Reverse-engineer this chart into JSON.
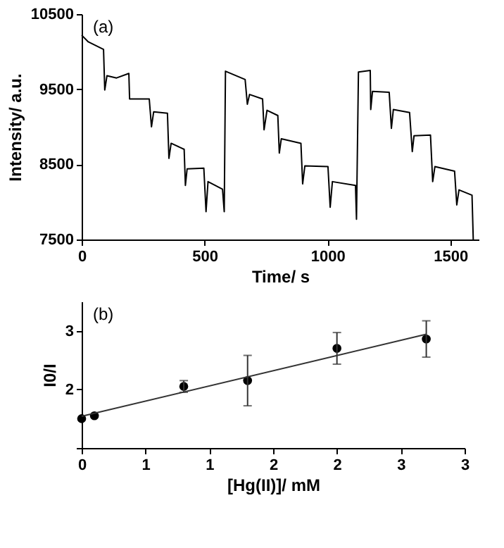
{
  "chart_data": [
    {
      "type": "line",
      "annotations": [
        "(a)"
      ],
      "xlabel": "Time/ s",
      "ylabel": "Intensity/ a.u.",
      "xlim": [
        0,
        1615
      ],
      "xticks": [
        0,
        500,
        1000,
        1500
      ],
      "ylim": [
        7500,
        10500
      ],
      "yticks": [
        7500,
        8500,
        9500,
        10500
      ],
      "grid": false,
      "marker": "none",
      "line_style": "solid",
      "series": [
        {
          "color": "#000000",
          "x": [
            0,
            27,
            89,
            94,
            103,
            142,
            192,
            195,
            275,
            284,
            293,
            349,
            355,
            364,
            417,
            422,
            429,
            497,
            506,
            514,
            573,
            580,
            585,
            665,
            674,
            683,
            736,
            742,
            754,
            798,
            804,
            812,
            892,
            899,
            908,
            1002,
            1011,
            1020,
            1114,
            1118,
            1126,
            1174,
            1176,
            1183,
            1251,
            1260,
            1268,
            1334,
            1345,
            1352,
            1419,
            1428,
            1437,
            1517,
            1526,
            1535,
            1588,
            1593
          ],
          "values": [
            10220,
            10130,
            10030,
            9490,
            9680,
            9650,
            9710,
            9370,
            9370,
            9000,
            9200,
            9180,
            8580,
            8780,
            8700,
            8220,
            8440,
            8450,
            7870,
            8270,
            8170,
            7870,
            9740,
            9630,
            9300,
            9430,
            9370,
            8960,
            9220,
            9150,
            8650,
            8840,
            8780,
            8240,
            8480,
            8470,
            7930,
            8270,
            8220,
            7770,
            9730,
            9750,
            9230,
            9470,
            9460,
            8980,
            9230,
            9190,
            8670,
            8880,
            8890,
            8270,
            8470,
            8410,
            7960,
            8160,
            8090,
            7500
          ]
        }
      ]
    },
    {
      "type": "scatter",
      "annotations": [
        "(b)"
      ],
      "xlabel": "[Hg(II)]/ mM",
      "ylabel": "I0/I",
      "xlim": [
        0,
        3
      ],
      "xticks": [
        0,
        {
          "value": 0.5,
          "label": "1"
        },
        1,
        {
          "value": 1.5,
          "label": "2"
        },
        2,
        {
          "value": 2.5,
          "label": "3"
        },
        3
      ],
      "ylim": [
        1,
        3.5
      ],
      "yticks": [
        {
          "value": 1,
          "label": null
        },
        2,
        3
      ],
      "grid": false,
      "marker": "circle",
      "series": [
        {
          "color": "#000000",
          "x": [
            0,
            0.1,
            0.8,
            1.3,
            2.0,
            2.7
          ],
          "values": [
            1.5,
            1.55,
            2.05,
            2.15,
            2.7,
            2.86
          ],
          "errors": [
            null,
            null,
            0.1,
            0.43,
            0.27,
            0.31
          ]
        },
        {
          "type": "line",
          "marker": "none",
          "color": "#333333",
          "x": [
            0,
            2.7
          ],
          "values": [
            1.54,
            2.94
          ]
        }
      ]
    }
  ]
}
